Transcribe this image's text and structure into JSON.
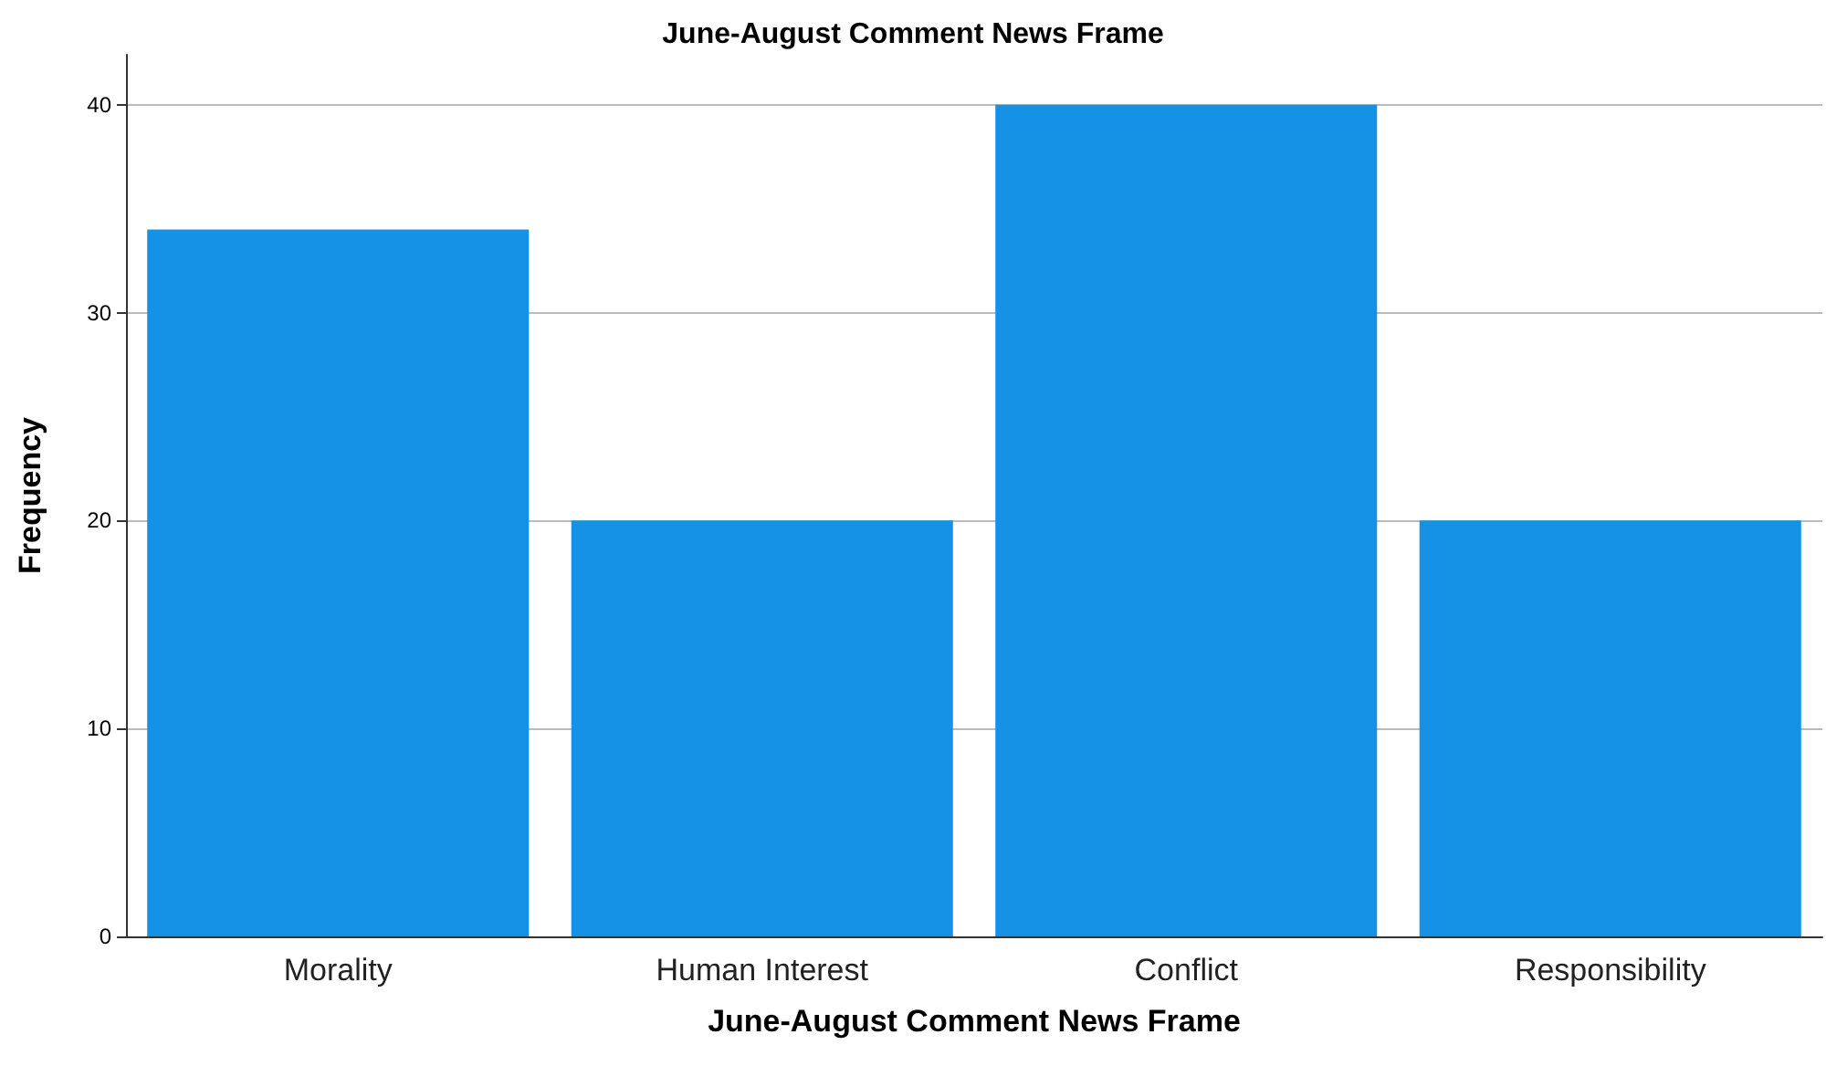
{
  "chart_data": {
    "type": "bar",
    "title": "June-August Comment News Frame",
    "xlabel": "June-August Comment News Frame",
    "ylabel": "Frequency",
    "categories": [
      "Morality",
      "Human Interest",
      "Conflict",
      "Responsibility"
    ],
    "values": [
      34,
      20,
      40,
      20
    ],
    "color": "#1592e6",
    "ylim": [
      0,
      42.4
    ],
    "yticks": [
      0,
      10,
      20,
      30,
      40
    ],
    "grid": "y"
  }
}
